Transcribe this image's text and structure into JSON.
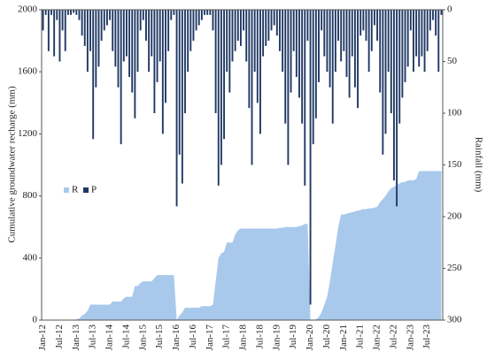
{
  "chart_data": {
    "type": "bar-area",
    "y_label": "Cumulative groundwater recharge (mm)",
    "y2_label": "Rainfall (mm)",
    "categories": [
      "Jan-12",
      null,
      null,
      null,
      null,
      null,
      "Jul-12",
      null,
      null,
      null,
      null,
      null,
      "Jan-13",
      null,
      null,
      null,
      null,
      null,
      "Jul-13",
      null,
      null,
      null,
      null,
      null,
      "Jan-14",
      null,
      null,
      null,
      null,
      null,
      "Jul-14",
      null,
      null,
      null,
      null,
      null,
      "Jan-15",
      null,
      null,
      null,
      null,
      null,
      "Jul-15",
      null,
      null,
      null,
      null,
      null,
      "Jan-16",
      null,
      null,
      null,
      null,
      null,
      "Jul-16",
      null,
      null,
      null,
      null,
      null,
      "Jan-17",
      null,
      null,
      null,
      null,
      null,
      "Jul-17",
      null,
      null,
      null,
      null,
      null,
      "Jan-18",
      null,
      null,
      null,
      null,
      null,
      "Jul-18",
      null,
      null,
      null,
      null,
      null,
      "Jan-19",
      null,
      null,
      null,
      null,
      null,
      "Jul-19",
      null,
      null,
      null,
      null,
      null,
      "Jan-20",
      null,
      null,
      null,
      null,
      null,
      "Jul-20",
      null,
      null,
      null,
      null,
      null,
      "Jan-21",
      null,
      null,
      null,
      null,
      null,
      "Jul-21",
      null,
      null,
      null,
      null,
      null,
      "Jan-22",
      null,
      null,
      null,
      null,
      null,
      "Jul-22",
      null,
      null,
      null,
      null,
      null,
      "Jan-23",
      null,
      null,
      null,
      null,
      null,
      "Jul-23",
      null,
      null,
      null,
      null,
      null
    ],
    "series": [
      {
        "name": "R",
        "color": "#a8c9ec",
        "kind": "area",
        "values": [
          0,
          0,
          0,
          0,
          0,
          0,
          0,
          0,
          0,
          0,
          0,
          0,
          5,
          10,
          30,
          40,
          60,
          100,
          100,
          100,
          100,
          100,
          100,
          100,
          100,
          120,
          120,
          120,
          120,
          140,
          150,
          150,
          150,
          220,
          220,
          240,
          250,
          250,
          250,
          250,
          270,
          290,
          290,
          290,
          290,
          290,
          290,
          290,
          0,
          30,
          50,
          80,
          80,
          80,
          80,
          80,
          80,
          90,
          90,
          90,
          90,
          100,
          250,
          400,
          430,
          440,
          500,
          500,
          500,
          550,
          580,
          590,
          590,
          590,
          590,
          590,
          590,
          590,
          590,
          590,
          590,
          590,
          590,
          590,
          590,
          595,
          595,
          600,
          600,
          600,
          600,
          600,
          605,
          610,
          620,
          620,
          0,
          0,
          5,
          20,
          50,
          100,
          150,
          250,
          370,
          480,
          600,
          680,
          680,
          685,
          690,
          695,
          700,
          705,
          710,
          715,
          715,
          720,
          720,
          725,
          730,
          760,
          780,
          800,
          830,
          850,
          860,
          870,
          880,
          890,
          890,
          900,
          900,
          900,
          910,
          960,
          960,
          960,
          960,
          960,
          960,
          960,
          960,
          960
        ]
      },
      {
        "name": "P",
        "color": "#1f3864",
        "kind": "bar",
        "axis": "y2",
        "values": [
          20,
          5,
          40,
          5,
          45,
          10,
          50,
          20,
          40,
          5,
          5,
          3,
          5,
          10,
          25,
          35,
          60,
          40,
          125,
          75,
          55,
          30,
          20,
          15,
          10,
          40,
          55,
          75,
          130,
          50,
          45,
          65,
          80,
          105,
          60,
          20,
          10,
          30,
          60,
          45,
          100,
          70,
          50,
          120,
          90,
          40,
          10,
          5,
          190,
          140,
          168,
          100,
          60,
          40,
          30,
          20,
          15,
          10,
          5,
          5,
          5,
          20,
          100,
          170,
          150,
          125,
          60,
          80,
          50,
          40,
          30,
          35,
          20,
          50,
          95,
          150,
          60,
          90,
          120,
          45,
          35,
          30,
          20,
          15,
          25,
          40,
          60,
          110,
          150,
          80,
          40,
          65,
          85,
          110,
          170,
          30,
          285,
          130,
          105,
          70,
          20,
          45,
          60,
          75,
          110,
          60,
          30,
          50,
          40,
          65,
          85,
          45,
          75,
          95,
          25,
          20,
          30,
          60,
          40,
          15,
          30,
          80,
          140,
          120,
          60,
          100,
          165,
          190,
          110,
          85,
          70,
          55,
          20,
          60,
          45,
          55,
          45,
          60,
          40,
          20,
          10,
          25,
          60,
          5
        ]
      }
    ],
    "ylim": [
      0,
      2000
    ],
    "yticks": [
      0,
      400,
      800,
      1200,
      1600,
      2000
    ],
    "y2lim": [
      0,
      300
    ],
    "y2ticks": [
      0,
      50,
      100,
      150,
      200,
      250,
      300
    ],
    "y2_inverted": true,
    "legend": "left",
    "grid": false
  }
}
